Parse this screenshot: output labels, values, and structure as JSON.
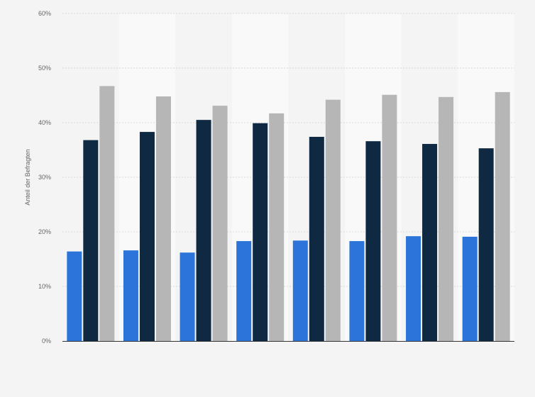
{
  "chart_data": {
    "type": "bar",
    "title": "",
    "xlabel": "",
    "ylabel": "Anteil der Befragten",
    "ylim": [
      0,
      60
    ],
    "y_ticks": [
      "0%",
      "10%",
      "20%",
      "30%",
      "40%",
      "50%",
      "60%"
    ],
    "y_tick_values": [
      0,
      10,
      20,
      30,
      40,
      50,
      60
    ],
    "grid": true,
    "legend": "none",
    "series": [
      {
        "color": "#2d74da",
        "values": [
          16.4,
          16.6,
          16.2,
          18.3,
          18.4,
          18.3,
          19.2,
          19.1
        ]
      },
      {
        "color": "#0f2943",
        "values": [
          36.8,
          38.3,
          40.5,
          39.9,
          37.4,
          36.6,
          36.1,
          35.3
        ]
      },
      {
        "color": "#b6b6b6",
        "values": [
          46.7,
          44.8,
          43.1,
          41.7,
          44.2,
          45.1,
          44.7,
          45.6
        ]
      }
    ]
  }
}
